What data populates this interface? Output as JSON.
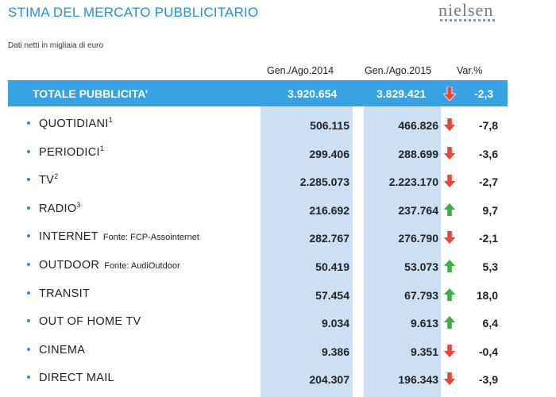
{
  "header": {
    "title": "STIMA DEL MERCATO PUBBLICITARIO",
    "logo_text": "nielsen",
    "subtitle": "Dati netti in migliaia di euro"
  },
  "columns": {
    "col_2014": "Gen./Ago.2014",
    "col_2015": "Gen./Ago.2015",
    "col_var": "Var.%"
  },
  "total": {
    "label": "TOTALE PUBBLICITA’",
    "v2014": "3.920.654",
    "v2015": "3.829.421",
    "trend": "down",
    "var": "-2,3"
  },
  "rows": [
    {
      "label": "QUOTIDIANI",
      "sup": "1",
      "note": "",
      "v2014": "506.115",
      "v2015": "466.826",
      "trend": "down",
      "var": "-7,8"
    },
    {
      "label": "PERIODICI",
      "sup": "1",
      "note": "",
      "v2014": "299.406",
      "v2015": "288.699",
      "trend": "down",
      "var": "-3,6"
    },
    {
      "label": "TV",
      "sup": "2",
      "note": "",
      "v2014": "2.285.073",
      "v2015": "2.223.170",
      "trend": "down",
      "var": "-2,7"
    },
    {
      "label": "RADIO",
      "sup": "3",
      "note": "",
      "v2014": "216.692",
      "v2015": "237.764",
      "trend": "up",
      "var": "9,7"
    },
    {
      "label": "INTERNET",
      "sup": "",
      "note": "Fonte: FCP-Assointernet",
      "v2014": "282.767",
      "v2015": "276.790",
      "trend": "down",
      "var": "-2,1"
    },
    {
      "label": "OUTDOOR",
      "sup": "",
      "note": "Fonte: AudiOutdoor",
      "v2014": "50.419",
      "v2015": "53.073",
      "trend": "up",
      "var": "5,3"
    },
    {
      "label": "TRANSIT",
      "sup": "",
      "note": "",
      "v2014": "57.454",
      "v2015": "67.793",
      "trend": "up",
      "var": "18,0"
    },
    {
      "label": "OUT OF HOME TV",
      "sup": "",
      "note": "",
      "v2014": "9.034",
      "v2015": "9.613",
      "trend": "up",
      "var": "6,4"
    },
    {
      "label": "CINEMA",
      "sup": "",
      "note": "",
      "v2014": "9.386",
      "v2015": "9.351",
      "trend": "down",
      "var": "-0,4"
    },
    {
      "label": "DIRECT MAIL",
      "sup": "",
      "note": "",
      "v2014": "204.307",
      "v2015": "196.343",
      "trend": "down",
      "var": "-3,9"
    }
  ],
  "colors": {
    "title": "#2a8fd0",
    "total_bar": "#37a3e5",
    "column_band": "#cde0f3",
    "arrow_up": "#3fae49",
    "arrow_down": "#e8453c"
  }
}
